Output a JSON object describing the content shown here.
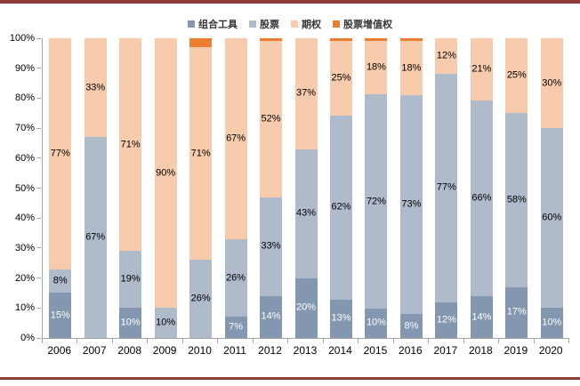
{
  "frame": {
    "rule_color": "#8e3b3a",
    "background": "#ffffff"
  },
  "chart_data": {
    "type": "bar",
    "variant": "stacked-100-percent",
    "title": "",
    "xlabel": "",
    "ylabel": "",
    "grid": false,
    "legend_position": "top-center",
    "categories": [
      "2006",
      "2007",
      "2008",
      "2009",
      "2010",
      "2011",
      "2012",
      "2013",
      "2014",
      "2015",
      "2016",
      "2017",
      "2018",
      "2019",
      "2020"
    ],
    "series": [
      {
        "name": "组合工具",
        "color": "#8497B0",
        "label_color": "#ffffff",
        "values": [
          15,
          0,
          10,
          0,
          0,
          7,
          14,
          20,
          13,
          10,
          8,
          12,
          14,
          17,
          10
        ],
        "labels": [
          "15%",
          "",
          "10%",
          "",
          "",
          "7%",
          "14%",
          "20%",
          "13%",
          "10%",
          "8%",
          "12%",
          "14%",
          "17%",
          "10%"
        ]
      },
      {
        "name": "股票",
        "color": "#AFBACB",
        "label_color": "#000000",
        "values": [
          8,
          67,
          19,
          10,
          26,
          26,
          33,
          43,
          62,
          72,
          73,
          77,
          66,
          58,
          60
        ],
        "labels": [
          "8%",
          "67%",
          "19%",
          "10%",
          "26%",
          "26%",
          "33%",
          "43%",
          "62%",
          "72%",
          "73%",
          "77%",
          "66%",
          "58%",
          "60%"
        ]
      },
      {
        "name": "期权",
        "color": "#F8CBAD",
        "label_color": "#000000",
        "values": [
          77,
          33,
          71,
          90,
          71,
          67,
          52,
          37,
          25,
          18,
          18,
          12,
          21,
          25,
          30
        ],
        "labels": [
          "77%",
          "33%",
          "71%",
          "90%",
          "71%",
          "67%",
          "52%",
          "37%",
          "25%",
          "18%",
          "18%",
          "12%",
          "21%",
          "25%",
          "30%"
        ]
      },
      {
        "name": "股票增值权",
        "color": "#ED7D31",
        "label_color": "#000000",
        "values": [
          0,
          0,
          0,
          0,
          3,
          0,
          1,
          0,
          1,
          1,
          1,
          0,
          0,
          0,
          0
        ],
        "labels": [
          "",
          "",
          "",
          "",
          "",
          "",
          "",
          "",
          "",
          "",
          "",
          "",
          "",
          "",
          ""
        ]
      }
    ],
    "y_axis": {
      "min": 0,
      "max": 100,
      "tick_step": 10,
      "tick_labels": [
        "0%",
        "10%",
        "20%",
        "30%",
        "40%",
        "50%",
        "60%",
        "70%",
        "80%",
        "90%",
        "100%"
      ]
    },
    "axis_color": "#a6a6a6"
  }
}
